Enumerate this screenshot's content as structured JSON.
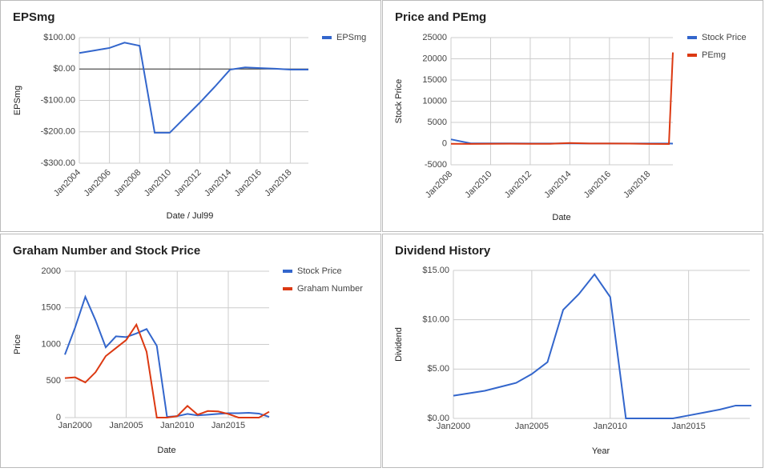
{
  "chart_data": [
    {
      "type": "line",
      "title": "EPSmg",
      "xlabel": "Date / Jul99",
      "ylabel": "EPSmg",
      "x": [
        2004,
        2005,
        2006,
        2007,
        2008,
        2009,
        2010,
        2011,
        2012,
        2013,
        2014,
        2015,
        2016,
        2017,
        2018,
        2019,
        2019.2
      ],
      "series": [
        {
          "name": "EPSmg",
          "color": "#3366cc",
          "values": [
            51,
            59,
            67,
            84,
            74,
            -203,
            -203,
            -155,
            -107,
            -56,
            -2,
            5,
            3,
            1,
            -2,
            -2,
            -2
          ]
        }
      ],
      "xlim": [
        2004,
        2019.2
      ],
      "xticks": [
        {
          "value": 2004,
          "label": "Jan2004"
        },
        {
          "value": 2006,
          "label": "Jan2006"
        },
        {
          "value": 2008,
          "label": "Jan2008"
        },
        {
          "value": 2010,
          "label": "Jan2010"
        },
        {
          "value": 2012,
          "label": "Jan2012"
        },
        {
          "value": 2014,
          "label": "Jan2014"
        },
        {
          "value": 2016,
          "label": "Jan2016"
        },
        {
          "value": 2018,
          "label": "Jan2018"
        }
      ],
      "ylim": [
        -300,
        100
      ],
      "yticks": [
        {
          "value": 100,
          "label": "$100.00"
        },
        {
          "value": 0,
          "label": "$0.00"
        },
        {
          "value": -100,
          "label": "-$100.00"
        },
        {
          "value": -200,
          "label": "-$200.00"
        },
        {
          "value": -300,
          "label": "-$300.00"
        }
      ],
      "zero_line": true,
      "grid": true
    },
    {
      "type": "line",
      "title": "Price and PEmg",
      "xlabel": "Date",
      "ylabel": "Stock Price",
      "x": [
        2008,
        2009,
        2010,
        2011,
        2012,
        2013,
        2014,
        2015,
        2016,
        2017,
        2018,
        2019,
        2019.2
      ],
      "series": [
        {
          "name": "Stock Price",
          "color": "#3366cc",
          "values": [
            1000,
            50,
            40,
            40,
            30,
            30,
            40,
            30,
            30,
            30,
            20,
            20,
            0
          ]
        },
        {
          "name": "PEmg",
          "color": "#dc3912",
          "values": [
            -50,
            -60,
            -40,
            -20,
            -40,
            -50,
            150,
            20,
            20,
            0,
            -80,
            -100,
            21500
          ]
        }
      ],
      "xlim": [
        2008,
        2019.2
      ],
      "xticks": [
        {
          "value": 2008,
          "label": "Jan2008"
        },
        {
          "value": 2010,
          "label": "Jan2010"
        },
        {
          "value": 2012,
          "label": "Jan2012"
        },
        {
          "value": 2014,
          "label": "Jan2014"
        },
        {
          "value": 2016,
          "label": "Jan2016"
        },
        {
          "value": 2018,
          "label": "Jan2018"
        }
      ],
      "ylim": [
        -5000,
        25000
      ],
      "yticks": [
        25000,
        20000,
        15000,
        10000,
        5000,
        0,
        -5000
      ],
      "grid": true
    },
    {
      "type": "line",
      "title": "Graham Number and Stock Price",
      "xlabel": "Date",
      "ylabel": "Price",
      "x": [
        1999,
        2000,
        2001,
        2002,
        2003,
        2004,
        2005,
        2006,
        2007,
        2008,
        2009,
        2010,
        2011,
        2012,
        2013,
        2014,
        2015,
        2016,
        2017,
        2018,
        2019
      ],
      "series": [
        {
          "name": "Stock Price",
          "color": "#3366cc",
          "values": [
            860,
            1230,
            1650,
            1330,
            960,
            1110,
            1100,
            1150,
            1210,
            980,
            10,
            20,
            50,
            30,
            40,
            50,
            60,
            60,
            65,
            55,
            10
          ]
        },
        {
          "name": "Graham Number",
          "color": "#dc3912",
          "values": [
            540,
            550,
            480,
            620,
            840,
            950,
            1060,
            1270,
            900,
            0,
            0,
            20,
            160,
            40,
            90,
            85,
            50,
            0,
            0,
            0,
            80
          ]
        }
      ],
      "xlim": [
        1999,
        2019
      ],
      "xticks": [
        {
          "value": 2000,
          "label": "Jan2000"
        },
        {
          "value": 2005,
          "label": "Jan2005"
        },
        {
          "value": 2010,
          "label": "Jan2010"
        },
        {
          "value": 2015,
          "label": "Jan2015"
        }
      ],
      "ylim": [
        0,
        2000
      ],
      "yticks": [
        2000,
        1500,
        1000,
        500,
        0
      ],
      "grid": true
    },
    {
      "type": "line",
      "title": "Dividend History",
      "xlabel": "Year",
      "ylabel": "Dividend",
      "x": [
        2000,
        2002,
        2004,
        2005,
        2006,
        2007,
        2008,
        2009,
        2010,
        2011,
        2014,
        2015,
        2016,
        2017,
        2018,
        2019
      ],
      "series": [
        {
          "color": "#3366cc",
          "values": [
            2.3,
            2.8,
            3.6,
            4.5,
            5.7,
            11.0,
            12.6,
            14.6,
            12.3,
            0,
            0,
            0.3,
            0.6,
            0.9,
            1.3,
            1.3
          ]
        }
      ],
      "xlim": [
        2000,
        2018.9
      ],
      "xticks": [
        {
          "value": 2000,
          "label": "Jan2000"
        },
        {
          "value": 2005,
          "label": "Jan2005"
        },
        {
          "value": 2010,
          "label": "Jan2010"
        },
        {
          "value": 2015,
          "label": "Jan2015"
        }
      ],
      "ylim": [
        0,
        15
      ],
      "yticks": [
        {
          "value": 15,
          "label": "$15.00"
        },
        {
          "value": 10,
          "label": "$10.00"
        },
        {
          "value": 5,
          "label": "$5.00"
        },
        {
          "value": 0,
          "label": "$0.00"
        }
      ],
      "grid": true
    }
  ]
}
